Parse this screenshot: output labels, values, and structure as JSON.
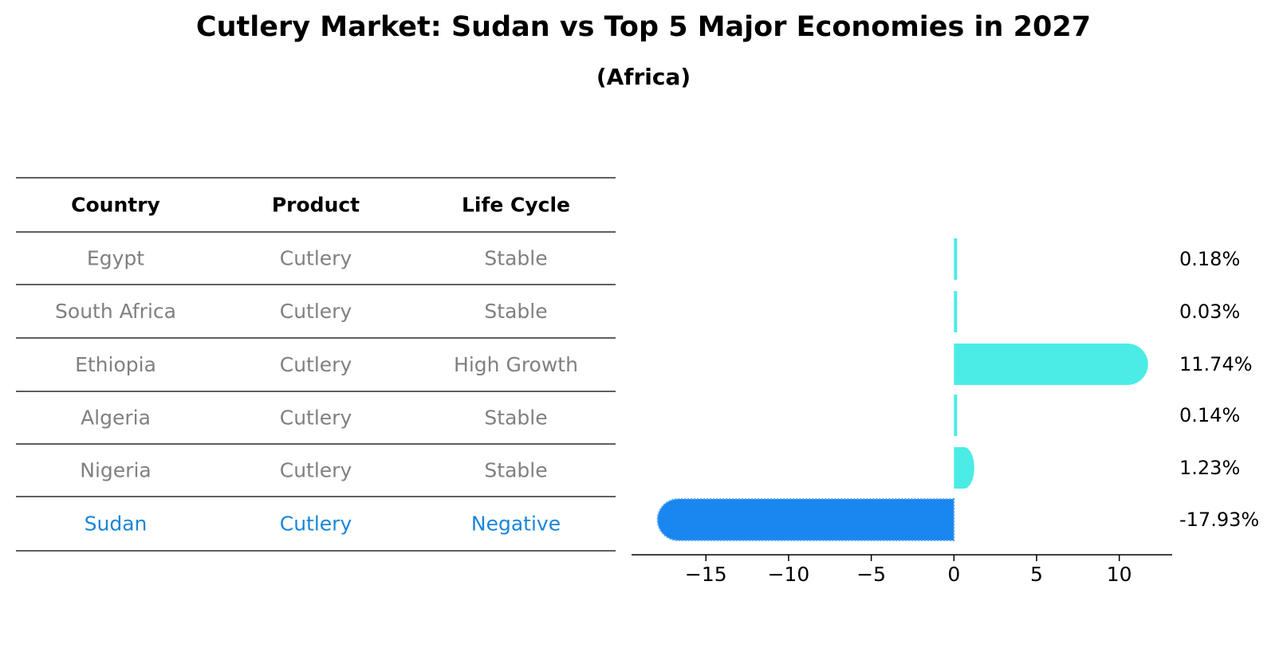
{
  "title": "Cutlery Market: Sudan vs Top 5 Major Economies in 2027",
  "subtitle": "(Africa)",
  "table": {
    "headers": [
      "Country",
      "Product",
      "Life Cycle"
    ],
    "rows": [
      {
        "country": "Egypt",
        "product": "Cutlery",
        "life_cycle": "Stable",
        "highlight": false
      },
      {
        "country": "South Africa",
        "product": "Cutlery",
        "life_cycle": "Stable",
        "highlight": false
      },
      {
        "country": "Ethiopia",
        "product": "Cutlery",
        "life_cycle": "High Growth",
        "highlight": false
      },
      {
        "country": "Algeria",
        "product": "Cutlery",
        "life_cycle": "Stable",
        "highlight": false
      },
      {
        "country": "Nigeria",
        "product": "Cutlery",
        "life_cycle": "Stable",
        "highlight": false
      },
      {
        "country": "Sudan",
        "product": "Cutlery",
        "life_cycle": "Negative",
        "highlight": true
      }
    ]
  },
  "colors": {
    "normal_bar": "#4bece6",
    "highlight_bar": "#1a86f0",
    "normal_text": "#808080",
    "highlight_text": "#1a86d8",
    "header_text": "#000000",
    "line": "#000000"
  },
  "chart_data": {
    "type": "bar",
    "orientation": "horizontal",
    "categories": [
      "Egypt",
      "South Africa",
      "Ethiopia",
      "Algeria",
      "Nigeria",
      "Sudan"
    ],
    "values": [
      0.18,
      0.03,
      11.74,
      0.14,
      1.23,
      -17.93
    ],
    "value_labels": [
      "0.18%",
      "0.03%",
      "11.74%",
      "0.14%",
      "1.23%",
      "-17.93%"
    ],
    "highlight_category": "Sudan",
    "xlim": [
      -19.5,
      13.2
    ],
    "xticks": [
      -15,
      -10,
      -5,
      0,
      5,
      10
    ],
    "xtick_labels": [
      "−15",
      "−10",
      "−5",
      "0",
      "5",
      "10"
    ],
    "grid": false,
    "legend": "none"
  }
}
